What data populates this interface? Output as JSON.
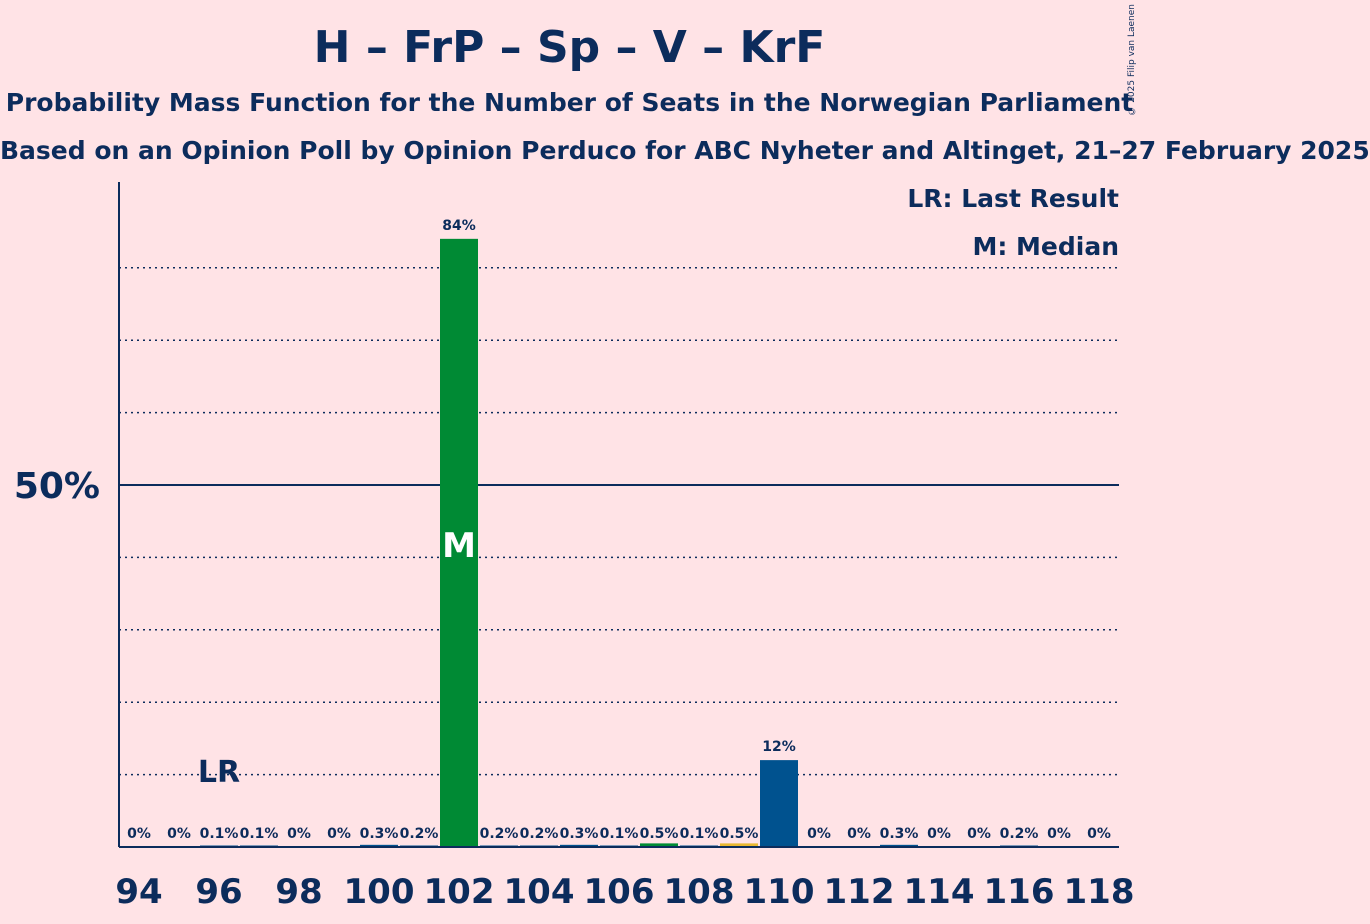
{
  "header": {
    "title": "H – FrP – Sp – V – KrF",
    "subtitle": "Probability Mass Function for the Number of Seats in the Norwegian Parliament",
    "subtitle2": "Based on an Opinion Poll by Opinion Perduco for ABC Nyheter and Altinget, 21–27 February 2025",
    "copyright": "© 2025 Filip van Laenen"
  },
  "legend": {
    "lr": "LR: Last Result",
    "median": "M: Median"
  },
  "colors": {
    "background": "#ffe3e6",
    "text": "#0c2c5c",
    "green": "#008a34",
    "blue": "#00528f",
    "gold": "#e8b832",
    "axis": "#0c2c5c"
  },
  "chart_data": {
    "type": "bar",
    "categories": [
      94,
      95,
      96,
      97,
      98,
      99,
      100,
      101,
      102,
      103,
      104,
      105,
      106,
      107,
      108,
      109,
      110,
      111,
      112,
      113,
      114,
      115,
      116,
      117,
      118
    ],
    "values": [
      0,
      0,
      0.1,
      0.1,
      0,
      0,
      0.3,
      0.2,
      84,
      0.2,
      0.2,
      0.3,
      0.1,
      0.5,
      0.1,
      0.5,
      12,
      0,
      0,
      0.3,
      0,
      0,
      0.2,
      0,
      0
    ],
    "labels": [
      "0%",
      "0%",
      "0.1%",
      "0.1%",
      "0%",
      "0%",
      "0.3%",
      "0.2%",
      "84%",
      "0.2%",
      "0.2%",
      "0.3%",
      "0.1%",
      "0.5%",
      "0.1%",
      "0.5%",
      "12%",
      "0%",
      "0%",
      "0.3%",
      "0%",
      "0%",
      "0.2%",
      "0%",
      "0%"
    ],
    "bar_colors": [
      "blue",
      "blue",
      "blue",
      "blue",
      "blue",
      "blue",
      "blue",
      "blue",
      "green",
      "blue",
      "blue",
      "blue",
      "blue",
      "green",
      "blue",
      "gold",
      "blue",
      "blue",
      "blue",
      "blue",
      "blue",
      "blue",
      "blue",
      "blue",
      "blue"
    ],
    "x_tick_labels": [
      "94",
      "96",
      "98",
      "100",
      "102",
      "104",
      "106",
      "108",
      "110",
      "112",
      "114",
      "116",
      "118"
    ],
    "y_tick_label": "50%",
    "y_tick_value": 50,
    "ylim": [
      0,
      92
    ],
    "gridlines": [
      10,
      20,
      30,
      40,
      60,
      70,
      80
    ],
    "last_result": 96,
    "last_result_label": "LR",
    "median": 102,
    "median_label": "M"
  }
}
